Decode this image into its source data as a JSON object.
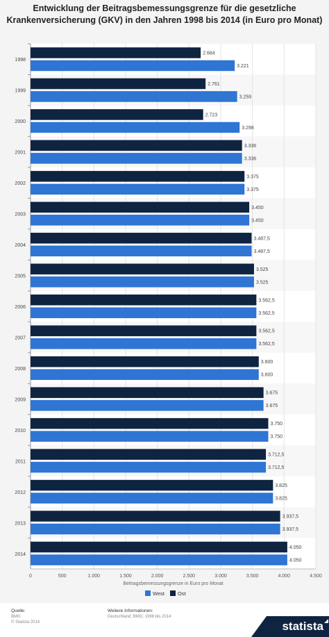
{
  "title": "Entwicklung der Beitragsbemessungsgrenze für die gesetzliche Krankenversicherung (GKV) in den Jahren 1998 bis 2014 (in Euro pro Monat)",
  "chart_data": {
    "type": "bar",
    "orientation": "horizontal",
    "categories": [
      "1998",
      "1999",
      "2000",
      "2001",
      "2002",
      "2003",
      "2004",
      "2005",
      "2006",
      "2007",
      "2008",
      "2009",
      "2010",
      "2011",
      "2012",
      "2013",
      "2014"
    ],
    "series": [
      {
        "name": "Ost",
        "color": "#0f2440",
        "values": [
          2684,
          2761,
          2723,
          3336,
          3375,
          3450,
          3487.5,
          3525,
          3562.5,
          3562.5,
          3600,
          3675,
          3750,
          3712.5,
          3825,
          3937.5,
          4050
        ],
        "labels": [
          "2.684",
          "2.761",
          "2.723",
          "3.336",
          "3.375",
          "3.450",
          "3.487,5",
          "3.525",
          "3.562,5",
          "3.562,5",
          "3.600",
          "3.675",
          "3.750",
          "3.712,5",
          "3.825",
          "3.937,5",
          "4.050"
        ]
      },
      {
        "name": "West",
        "color": "#2e75d4",
        "values": [
          3221,
          3259,
          3298,
          3336,
          3375,
          3450,
          3487.5,
          3525,
          3562.5,
          3562.5,
          3600,
          3675,
          3750,
          3712.5,
          3825,
          3937.5,
          4050
        ],
        "labels": [
          "3.221",
          "3.259",
          "3.298",
          "3.336",
          "3.375",
          "3.450",
          "3.487,5",
          "3.525",
          "3.562,5",
          "3.562,5",
          "3.600",
          "3.675",
          "3.750",
          "3.712,5",
          "3.825",
          "3.937,5",
          "4.050"
        ]
      }
    ],
    "xlabel": "Beitragsbemessungsgrenze in Euro pro Monat",
    "xlim": [
      0,
      4500
    ],
    "ticks": [
      0,
      500,
      1000,
      1500,
      2000,
      2500,
      3000,
      3500,
      4000,
      4500
    ],
    "tick_labels": [
      "0",
      "500",
      "1.000",
      "1.500",
      "2.000",
      "2.500",
      "3.000",
      "3.500",
      "4.000",
      "4.500"
    ],
    "legend": [
      "West",
      "Ost"
    ],
    "legend_position": "bottom",
    "grid": true
  },
  "footer": {
    "source_heading": "Quelle:",
    "source_lines": [
      "BMG",
      "© Statista 2014"
    ],
    "info_heading": "Weitere Informationen:",
    "info_lines": [
      "Deutschland; BMG; 1998 bis 2014"
    ],
    "logo": "statista"
  }
}
